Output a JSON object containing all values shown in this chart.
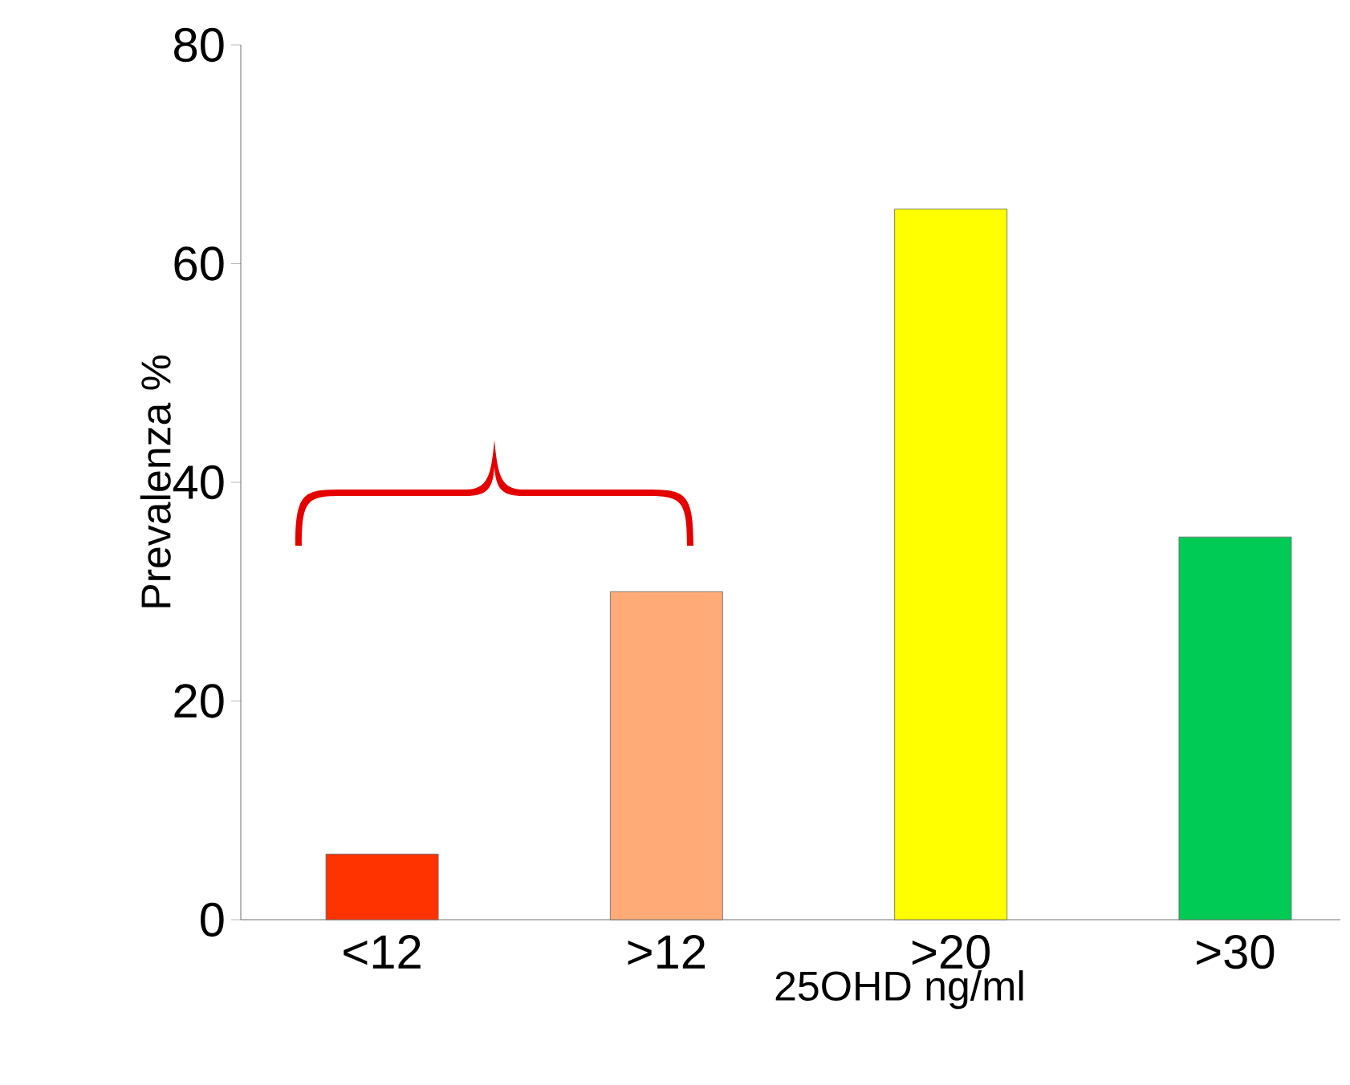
{
  "chart_data": {
    "type": "bar",
    "xlabel": "25OHD ng/ml",
    "ylabel": "Prevalenza %",
    "categories": [
      "<12",
      ">12",
      ">20",
      ">30"
    ],
    "values": [
      6,
      30,
      65,
      35
    ],
    "colors": [
      "#ff3300",
      "#ffaa77",
      "#ffff00",
      "#00cc55"
    ],
    "ylim": [
      0,
      80
    ],
    "yticks": [
      0,
      20,
      40,
      60,
      80
    ],
    "grid": false
  }
}
